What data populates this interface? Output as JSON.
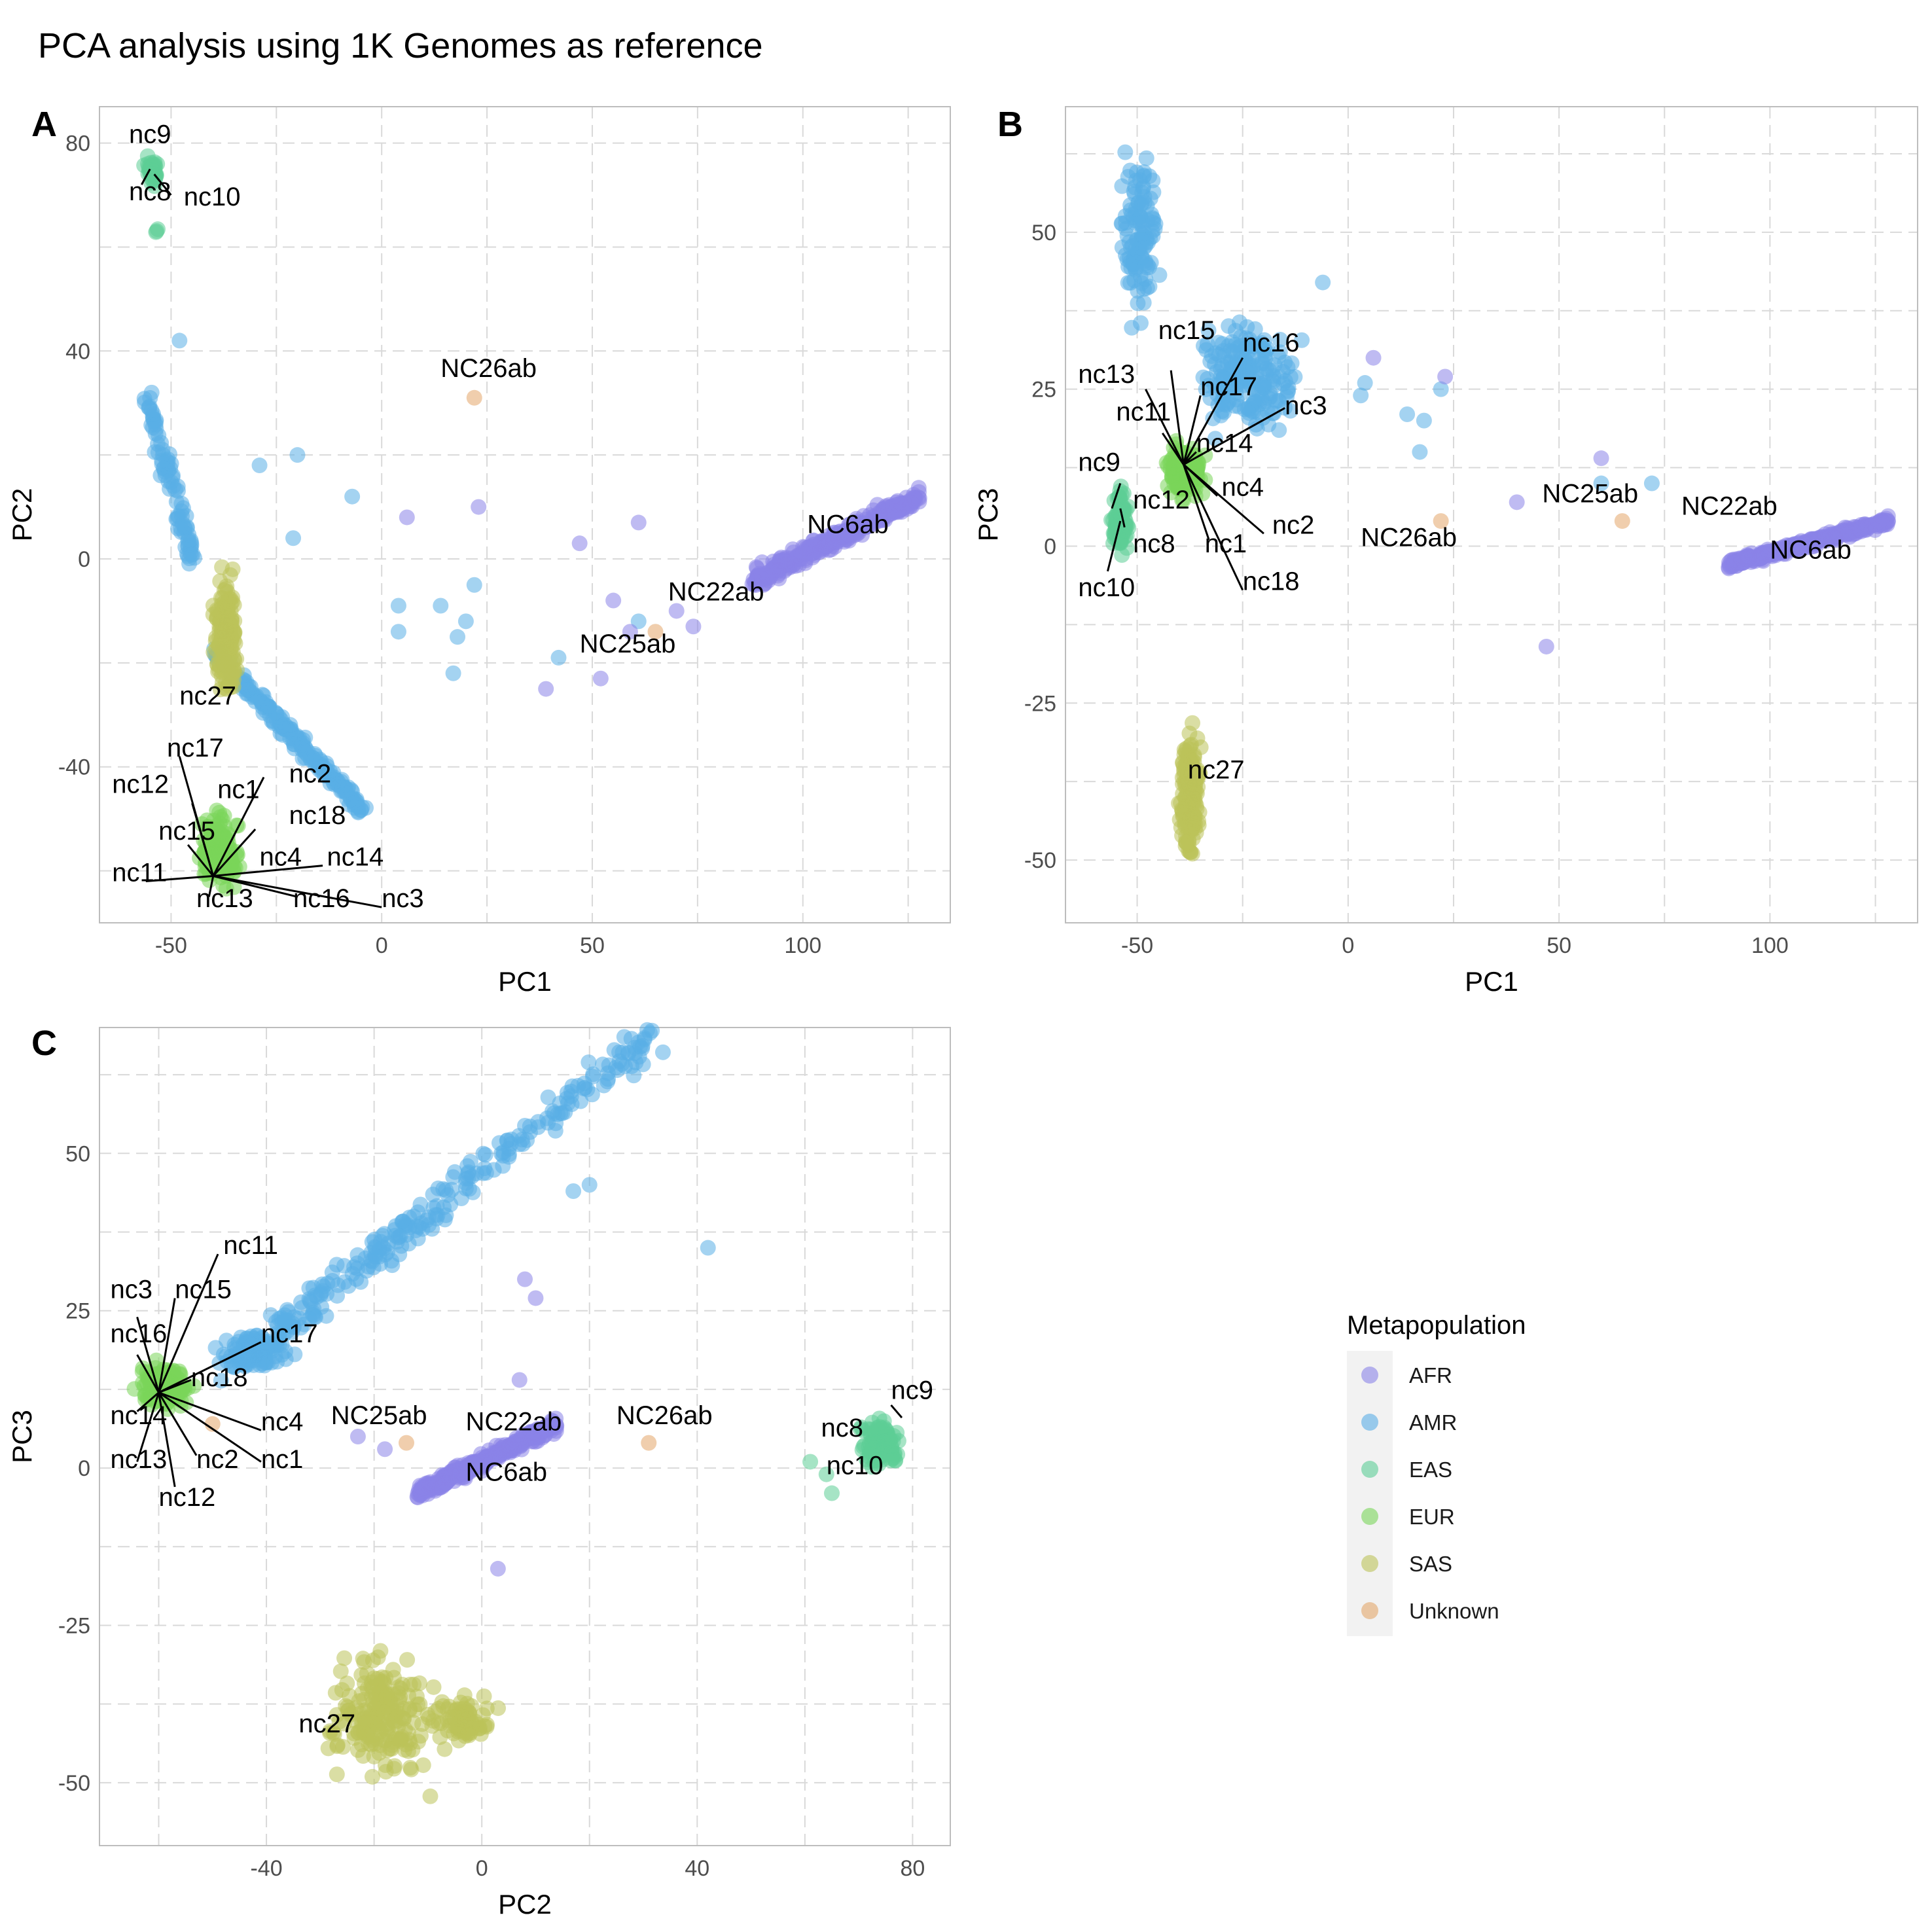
{
  "title": "PCA analysis using 1K Genomes as reference",
  "legend": {
    "title": "Metapopulation",
    "position": "right",
    "entries": [
      {
        "label": "AFR",
        "color": "#8b83e8"
      },
      {
        "label": "AMR",
        "color": "#5aaee6"
      },
      {
        "label": "EAS",
        "color": "#5ccd96"
      },
      {
        "label": "EUR",
        "color": "#7ad65a"
      },
      {
        "label": "SAS",
        "color": "#bcc35a"
      },
      {
        "label": "Unknown",
        "color": "#e3a66a"
      }
    ]
  },
  "chart_data": [
    {
      "panel": "A",
      "type": "scatter",
      "xlabel": "PC1",
      "ylabel": "PC2",
      "xlim": [
        -67,
        135
      ],
      "ylim": [
        -70,
        87
      ],
      "xticks": [
        "-50",
        "0",
        "50",
        "100"
      ],
      "yticks": [
        "-40",
        "0",
        "40",
        "80"
      ],
      "grid": true,
      "clusters": [
        {
          "group": "EAS",
          "x": [
            -57,
            -52
          ],
          "y": [
            70,
            79
          ],
          "n": 40
        },
        {
          "group": "EAS",
          "x": [
            -54,
            -53
          ],
          "y": [
            61,
            65
          ],
          "n": 3
        },
        {
          "group": "AMR",
          "x": [
            -56,
            -45
          ],
          "y": [
            0,
            32
          ],
          "n": 90
        },
        {
          "group": "AMR",
          "x": [
            -40,
            -5
          ],
          "y": [
            -48,
            -18
          ],
          "n": 200
        },
        {
          "group": "EUR",
          "x": [
            -45,
            -32
          ],
          "y": [
            -66,
            -46
          ],
          "n": 170
        },
        {
          "group": "SAS",
          "x": [
            -41,
            -33
          ],
          "y": [
            -32,
            2
          ],
          "n": 200
        },
        {
          "group": "AFR",
          "x": [
            88,
            128
          ],
          "y": [
            -4,
            12
          ],
          "n": 320
        }
      ],
      "points": [
        {
          "group": "AMR",
          "x": -48,
          "y": 42
        },
        {
          "group": "AMR",
          "x": -20,
          "y": 20
        },
        {
          "group": "AMR",
          "x": -29,
          "y": 18
        },
        {
          "group": "AMR",
          "x": -7,
          "y": 12
        },
        {
          "group": "AMR",
          "x": -21,
          "y": 4
        },
        {
          "group": "AMR",
          "x": 4,
          "y": -9
        },
        {
          "group": "AMR",
          "x": 14,
          "y": -9
        },
        {
          "group": "AMR",
          "x": 22,
          "y": -5
        },
        {
          "group": "AMR",
          "x": 20,
          "y": -12
        },
        {
          "group": "AMR",
          "x": 4,
          "y": -14
        },
        {
          "group": "AMR",
          "x": 18,
          "y": -15
        },
        {
          "group": "AMR",
          "x": 17,
          "y": -22
        },
        {
          "group": "AMR",
          "x": 42,
          "y": -19
        },
        {
          "group": "AMR",
          "x": 61,
          "y": -12
        },
        {
          "group": "AFR",
          "x": 6,
          "y": 8
        },
        {
          "group": "AFR",
          "x": 23,
          "y": 10
        },
        {
          "group": "AFR",
          "x": 47,
          "y": 3
        },
        {
          "group": "AFR",
          "x": 61,
          "y": 7
        },
        {
          "group": "AFR",
          "x": 55,
          "y": -8
        },
        {
          "group": "AFR",
          "x": 59,
          "y": -14
        },
        {
          "group": "AFR",
          "x": 52,
          "y": -23
        },
        {
          "group": "AFR",
          "x": 39,
          "y": -25
        },
        {
          "group": "AFR",
          "x": 70,
          "y": -10
        },
        {
          "group": "AFR",
          "x": 74,
          "y": -13
        },
        {
          "group": "Unknown",
          "x": 22,
          "y": 31
        },
        {
          "group": "Unknown",
          "x": 65,
          "y": -14
        }
      ],
      "labels": [
        {
          "text": "nc9",
          "x": -60,
          "y": 80
        },
        {
          "text": "nc8",
          "x": -60,
          "y": 69
        },
        {
          "text": "nc10",
          "x": -47,
          "y": 68
        },
        {
          "text": "NC26ab",
          "x": 14,
          "y": 35
        },
        {
          "text": "NC6ab",
          "x": 101,
          "y": 5
        },
        {
          "text": "NC22ab",
          "x": 68,
          "y": -8
        },
        {
          "text": "NC25ab",
          "x": 47,
          "y": -18
        },
        {
          "text": "nc27",
          "x": -48,
          "y": -28
        },
        {
          "text": "nc17",
          "x": -51,
          "y": -38
        },
        {
          "text": "nc2",
          "x": -22,
          "y": -43
        },
        {
          "text": "nc12",
          "x": -64,
          "y": -45
        },
        {
          "text": "nc1",
          "x": -39,
          "y": -46
        },
        {
          "text": "nc18",
          "x": -22,
          "y": -51
        },
        {
          "text": "nc15",
          "x": -53,
          "y": -54
        },
        {
          "text": "nc4",
          "x": -29,
          "y": -59
        },
        {
          "text": "nc14",
          "x": -13,
          "y": -59
        },
        {
          "text": "nc11",
          "x": -64,
          "y": -62
        },
        {
          "text": "nc13",
          "x": -44,
          "y": -67
        },
        {
          "text": "nc16",
          "x": -21,
          "y": -67
        },
        {
          "text": "nc3",
          "x": 0,
          "y": -67
        }
      ]
    },
    {
      "panel": "B",
      "type": "scatter",
      "xlabel": "PC1",
      "ylabel": "PC3",
      "xlim": [
        -67,
        135
      ],
      "ylim": [
        -60,
        70
      ],
      "xticks": [
        "-50",
        "0",
        "50",
        "100"
      ],
      "yticks": [
        "-50",
        "-25",
        "0",
        "25",
        "50"
      ],
      "grid": true,
      "clusters": [
        {
          "group": "AMR",
          "x": [
            -56,
            -43
          ],
          "y": [
            30,
            69
          ],
          "n": 120
        },
        {
          "group": "AMR",
          "x": [
            -42,
            -5
          ],
          "y": [
            14,
            40
          ],
          "n": 200
        },
        {
          "group": "EUR",
          "x": [
            -45,
            -32
          ],
          "y": [
            6,
            18
          ],
          "n": 170
        },
        {
          "group": "EAS",
          "x": [
            -57,
            -51
          ],
          "y": [
            -4,
            12
          ],
          "n": 100
        },
        {
          "group": "SAS",
          "x": [
            -41,
            -34
          ],
          "y": [
            -54,
            -25
          ],
          "n": 200
        },
        {
          "group": "AFR",
          "x": 90,
          "y_min": -3,
          "x_max": 128,
          "y_max": 4,
          "n": 320
        }
      ],
      "points": [
        {
          "group": "AMR",
          "x": -6,
          "y": 42
        },
        {
          "group": "AMR",
          "x": 4,
          "y": 26
        },
        {
          "group": "AMR",
          "x": 3,
          "y": 24
        },
        {
          "group": "AMR",
          "x": 14,
          "y": 21
        },
        {
          "group": "AMR",
          "x": 18,
          "y": 20
        },
        {
          "group": "AMR",
          "x": 22,
          "y": 25
        },
        {
          "group": "AMR",
          "x": 17,
          "y": 15
        },
        {
          "group": "AMR",
          "x": 60,
          "y": 10
        },
        {
          "group": "AMR",
          "x": 72,
          "y": 10
        },
        {
          "group": "AFR",
          "x": 6,
          "y": 30
        },
        {
          "group": "AFR",
          "x": 23,
          "y": 27
        },
        {
          "group": "AFR",
          "x": 40,
          "y": 7
        },
        {
          "group": "AFR",
          "x": 60,
          "y": 14
        },
        {
          "group": "AFR",
          "x": 47,
          "y": -16
        },
        {
          "group": "Unknown",
          "x": 22,
          "y": 4
        },
        {
          "group": "Unknown",
          "x": 65,
          "y": 4
        }
      ],
      "labels": [
        {
          "text": "nc15",
          "x": -45,
          "y": 33
        },
        {
          "text": "nc16",
          "x": -25,
          "y": 31
        },
        {
          "text": "nc13",
          "x": -64,
          "y": 26
        },
        {
          "text": "nc17",
          "x": -35,
          "y": 24
        },
        {
          "text": "nc3",
          "x": -15,
          "y": 21
        },
        {
          "text": "nc11",
          "x": -55,
          "y": 20
        },
        {
          "text": "nc9",
          "x": -64,
          "y": 12
        },
        {
          "text": "nc14",
          "x": -36,
          "y": 15
        },
        {
          "text": "nc4",
          "x": -30,
          "y": 8
        },
        {
          "text": "nc12",
          "x": -51,
          "y": 6
        },
        {
          "text": "nc2",
          "x": -18,
          "y": 2
        },
        {
          "text": "nc1",
          "x": -34,
          "y": -1
        },
        {
          "text": "nc8",
          "x": -51,
          "y": -1
        },
        {
          "text": "nc18",
          "x": -25,
          "y": -7
        },
        {
          "text": "nc10",
          "x": -64,
          "y": -8
        },
        {
          "text": "NC25ab",
          "x": 46,
          "y": 7
        },
        {
          "text": "NC22ab",
          "x": 79,
          "y": 5
        },
        {
          "text": "NC26ab",
          "x": 3,
          "y": 0
        },
        {
          "text": "NC6ab",
          "x": 100,
          "y": -2
        },
        {
          "text": "nc27",
          "x": -38,
          "y": -37
        }
      ]
    },
    {
      "panel": "C",
      "type": "scatter",
      "xlabel": "PC2",
      "ylabel": "PC3",
      "xlim": [
        -71,
        87
      ],
      "ylim": [
        -60,
        70
      ],
      "xticks": [
        "-40",
        "0",
        "40",
        "80"
      ],
      "yticks": [
        "-50",
        "-25",
        "0",
        "25",
        "50"
      ],
      "grid": true,
      "clusters": [
        {
          "group": "AMR",
          "x": [
            -48,
            32
          ],
          "y": [
            15,
            69
          ],
          "n": 280
        },
        {
          "group": "AMR",
          "x": [
            -52,
            -33
          ],
          "y": [
            14,
            23
          ],
          "n": 90
        },
        {
          "group": "EUR",
          "x": [
            -66,
            -52
          ],
          "y": [
            8,
            18
          ],
          "n": 170
        },
        {
          "group": "AFR",
          "x": [
            -12,
            14
          ],
          "y": [
            -4,
            7
          ],
          "n": 320
        },
        {
          "group": "EAS",
          "x": [
            68,
            80
          ],
          "y": [
            -2,
            10
          ],
          "n": 100
        },
        {
          "group": "SAS",
          "x": [
            -33,
            -5
          ],
          "y": [
            -54,
            -25
          ],
          "n": 200
        },
        {
          "group": "SAS",
          "x": [
            -12,
            5
          ],
          "y": [
            -45,
            -35
          ],
          "n": 80
        }
      ],
      "points": [
        {
          "group": "AMR",
          "x": 42,
          "y": 35
        },
        {
          "group": "AMR",
          "x": 20,
          "y": 45
        },
        {
          "group": "AMR",
          "x": 17,
          "y": 44
        },
        {
          "group": "AFR",
          "x": 8,
          "y": 30
        },
        {
          "group": "AFR",
          "x": 10,
          "y": 27
        },
        {
          "group": "AFR",
          "x": 7,
          "y": 14
        },
        {
          "group": "AFR",
          "x": 3,
          "y": -16
        },
        {
          "group": "AFR",
          "x": -23,
          "y": 5
        },
        {
          "group": "AFR",
          "x": -18,
          "y": 3
        },
        {
          "group": "EAS",
          "x": 61,
          "y": 1
        },
        {
          "group": "EAS",
          "x": 64,
          "y": -1
        },
        {
          "group": "EAS",
          "x": 65,
          "y": -4
        },
        {
          "group": "Unknown",
          "x": 31,
          "y": 4
        },
        {
          "group": "Unknown",
          "x": -14,
          "y": 4
        },
        {
          "group": "Unknown",
          "x": -50,
          "y": 7
        }
      ],
      "labels": [
        {
          "text": "nc11",
          "x": -48,
          "y": 34
        },
        {
          "text": "nc3",
          "x": -69,
          "y": 27
        },
        {
          "text": "nc15",
          "x": -57,
          "y": 27
        },
        {
          "text": "nc16",
          "x": -69,
          "y": 20
        },
        {
          "text": "nc17",
          "x": -41,
          "y": 20
        },
        {
          "text": "nc18",
          "x": -54,
          "y": 13
        },
        {
          "text": "nc14",
          "x": -69,
          "y": 7
        },
        {
          "text": "nc4",
          "x": -41,
          "y": 6
        },
        {
          "text": "nc13",
          "x": -69,
          "y": 0
        },
        {
          "text": "nc2",
          "x": -53,
          "y": 0
        },
        {
          "text": "nc1",
          "x": -41,
          "y": 0
        },
        {
          "text": "nc12",
          "x": -60,
          "y": -6
        },
        {
          "text": "NC25ab",
          "x": -28,
          "y": 7
        },
        {
          "text": "NC22ab",
          "x": -3,
          "y": 6
        },
        {
          "text": "NC26ab",
          "x": 25,
          "y": 7
        },
        {
          "text": "NC6ab",
          "x": -3,
          "y": -2
        },
        {
          "text": "nc9",
          "x": 76,
          "y": 11
        },
        {
          "text": "nc8",
          "x": 63,
          "y": 5
        },
        {
          "text": "nc10",
          "x": 64,
          "y": -1
        },
        {
          "text": "nc27",
          "x": -34,
          "y": -42
        }
      ]
    }
  ]
}
